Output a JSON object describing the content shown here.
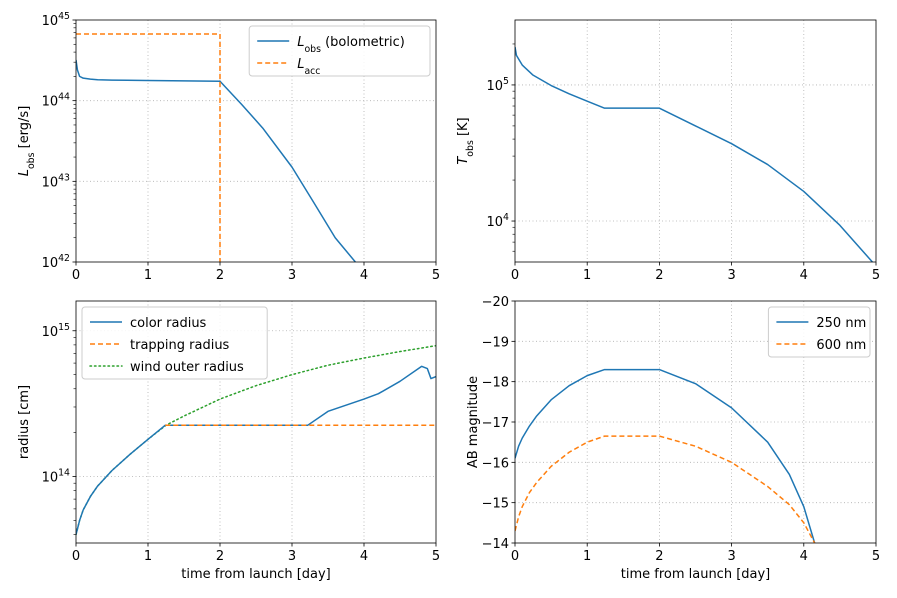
{
  "chart_data": [
    {
      "id": "lum",
      "type": "line",
      "xscale": "linear",
      "yscale": "log",
      "xlim": [
        0,
        5
      ],
      "ylim": [
        1e+42,
        1e+45
      ],
      "xticks": [
        0,
        1,
        2,
        3,
        4,
        5
      ],
      "xtick_labels": [
        "0",
        "1",
        "2",
        "3",
        "4",
        "5"
      ],
      "yticks": [
        1e+42,
        1e+43,
        1e+44,
        1e+45
      ],
      "ytick_labels": [
        {
          "base": "10",
          "exp": "42"
        },
        {
          "base": "10",
          "exp": "43"
        },
        {
          "base": "10",
          "exp": "44"
        },
        {
          "base": "10",
          "exp": "45"
        }
      ],
      "xlabel": "",
      "ylabel": {
        "sym": "L",
        "sub": "obs",
        "rest": " [erg/s]"
      },
      "grid": true,
      "legend": "top-right",
      "series": [
        {
          "name": {
            "sym": "L",
            "sub": "obs",
            "rest": " (bolometric)"
          },
          "color": "#1f77b4",
          "style": "solid",
          "x": [
            0,
            0.02,
            0.05,
            0.1,
            0.2,
            0.3,
            0.5,
            1,
            1.5,
            2,
            2.3,
            2.6,
            3,
            3.3,
            3.6,
            3.88
          ],
          "y": [
            3.2e+44,
            2.4e+44,
            2e+44,
            1.9e+44,
            1.85e+44,
            1.82e+44,
            1.8e+44,
            1.78e+44,
            1.76e+44,
            1.74e+44,
            9e+43,
            4.5e+43,
            1.5e+43,
            5.5e+42,
            2e+42,
            1e+42
          ]
        },
        {
          "name": {
            "sym": "L",
            "sub": "acc",
            "rest": ""
          },
          "color": "#ff7f0e",
          "style": "dashed",
          "x": [
            0,
            2,
            2
          ],
          "y": [
            6.7e+44,
            6.7e+44,
            1e+42
          ]
        }
      ]
    },
    {
      "id": "temp",
      "type": "line",
      "xscale": "linear",
      "yscale": "log",
      "xlim": [
        0,
        5
      ],
      "ylim": [
        5000,
        300000
      ],
      "xticks": [
        0,
        1,
        2,
        3,
        4,
        5
      ],
      "xtick_labels": [
        "0",
        "1",
        "2",
        "3",
        "4",
        "5"
      ],
      "yticks": [
        10000,
        100000
      ],
      "ytick_labels": [
        {
          "base": "10",
          "exp": "4"
        },
        {
          "base": "10",
          "exp": "5"
        }
      ],
      "xlabel": "",
      "ylabel": {
        "sym": "T",
        "sub": "obs",
        "rest": " [K]"
      },
      "grid": true,
      "series": [
        {
          "name": "",
          "color": "#1f77b4",
          "style": "solid",
          "x": [
            0,
            0.02,
            0.1,
            0.25,
            0.5,
            0.75,
            1,
            1.24,
            2,
            2.5,
            3,
            3.5,
            4,
            4.5,
            4.95
          ],
          "y": [
            190000,
            165000,
            140000,
            118000,
            99000,
            86000,
            76000,
            67500,
            67500,
            50000,
            37000,
            26000,
            16500,
            9300,
            5000
          ]
        }
      ]
    },
    {
      "id": "radius",
      "type": "line",
      "xscale": "linear",
      "yscale": "log",
      "xlim": [
        0,
        5
      ],
      "ylim": [
        35000000000000.0,
        1600000000000000.0
      ],
      "xticks": [
        0,
        1,
        2,
        3,
        4,
        5
      ],
      "xtick_labels": [
        "0",
        "1",
        "2",
        "3",
        "4",
        "5"
      ],
      "yticks": [
        100000000000000.0,
        1000000000000000.0
      ],
      "ytick_labels": [
        {
          "base": "10",
          "exp": "14"
        },
        {
          "base": "10",
          "exp": "15"
        }
      ],
      "xlabel": "time from launch [day]",
      "ylabel": {
        "sym": "",
        "sub": "",
        "rest": "radius [cm]"
      },
      "grid": true,
      "legend": "top-left",
      "series": [
        {
          "name": "wind outer radius",
          "color": "#2ca02c",
          "style": "dotted",
          "x": [
            0,
            0.05,
            0.1,
            0.2,
            0.3,
            0.5,
            0.75,
            1,
            1.25,
            1.5,
            2,
            2.5,
            3,
            3.5,
            4,
            4.5,
            5
          ],
          "y": [
            40000000000000.0,
            50000000000000.0,
            59000000000000.0,
            73000000000000.0,
            86000000000000.0,
            110000000000000.0,
            142000000000000.0,
            180000000000000.0,
            225000000000000.0,
            260000000000000.0,
            340000000000000.0,
            420000000000000.0,
            500000000000000.0,
            580000000000000.0,
            650000000000000.0,
            720000000000000.0,
            790000000000000.0
          ]
        },
        {
          "name": "color radius",
          "color": "#1f77b4",
          "style": "solid",
          "x": [
            0,
            0.05,
            0.1,
            0.2,
            0.3,
            0.5,
            0.75,
            1,
            1.24,
            3.22,
            3.5,
            4.0,
            4.2,
            4.5,
            4.8,
            4.88,
            4.93,
            5.0
          ],
          "y": [
            40000000000000.0,
            50000000000000.0,
            59000000000000.0,
            73000000000000.0,
            86000000000000.0,
            110000000000000.0,
            142000000000000.0,
            180000000000000.0,
            225000000000000.0,
            225000000000000.0,
            280000000000000.0,
            340000000000000.0,
            370000000000000.0,
            450000000000000.0,
            570000000000000.0,
            550000000000000.0,
            470000000000000.0,
            485000000000000.0
          ]
        },
        {
          "name": "trapping radius",
          "color": "#ff7f0e",
          "style": "dashed",
          "x": [
            1.24,
            5.0
          ],
          "y": [
            225000000000000.0,
            225000000000000.0
          ]
        }
      ],
      "legend_order": [
        "color radius",
        "trapping radius",
        "wind outer radius"
      ]
    },
    {
      "id": "mag",
      "type": "line",
      "xscale": "linear",
      "yscale": "linear",
      "yinverted": true,
      "xlim": [
        0,
        5
      ],
      "ylim": [
        -14,
        -20
      ],
      "xticks": [
        0,
        1,
        2,
        3,
        4,
        5
      ],
      "xtick_labels": [
        "0",
        "1",
        "2",
        "3",
        "4",
        "5"
      ],
      "yticks": [
        -14,
        -15,
        -16,
        -17,
        -18,
        -19,
        -20
      ],
      "ytick_labels": [
        "−14",
        "−15",
        "−16",
        "−17",
        "−18",
        "−19",
        "−20"
      ],
      "xlabel": "time from launch [day]",
      "ylabel": {
        "sym": "",
        "sub": "",
        "rest": "AB magnitude"
      },
      "grid": true,
      "legend": "top-right",
      "series": [
        {
          "name": "250 nm",
          "color": "#1f77b4",
          "style": "solid",
          "x": [
            0,
            0.05,
            0.1,
            0.2,
            0.3,
            0.5,
            0.75,
            1,
            1.24,
            2,
            2.5,
            3,
            3.5,
            3.8,
            4.0,
            4.15
          ],
          "y": [
            -16.1,
            -16.4,
            -16.6,
            -16.9,
            -17.15,
            -17.55,
            -17.9,
            -18.15,
            -18.3,
            -18.3,
            -17.95,
            -17.35,
            -16.5,
            -15.7,
            -14.9,
            -14.0
          ]
        },
        {
          "name": "600 nm",
          "color": "#ff7f0e",
          "style": "dashed",
          "x": [
            0,
            0.05,
            0.1,
            0.2,
            0.3,
            0.5,
            0.75,
            1,
            1.24,
            2,
            2.5,
            3,
            3.5,
            3.8,
            4.0,
            4.15
          ],
          "y": [
            -14.3,
            -14.65,
            -14.9,
            -15.25,
            -15.5,
            -15.9,
            -16.25,
            -16.5,
            -16.65,
            -16.65,
            -16.4,
            -16.0,
            -15.4,
            -14.95,
            -14.5,
            -14.0
          ]
        }
      ]
    }
  ]
}
